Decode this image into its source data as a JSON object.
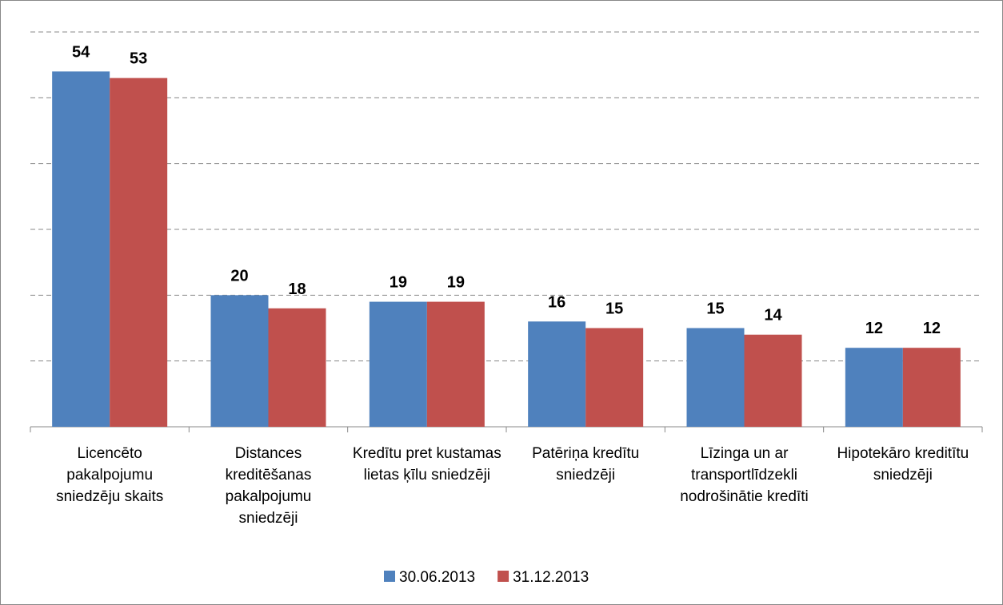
{
  "chart_data": {
    "type": "bar",
    "categories": [
      "Licencēto pakalpojumu sniedzēju skaits",
      "Distances kreditēšanas pakalpojumu sniedzēji",
      "Kredītu pret kustamas lietas ķīlu sniedzēji",
      "Patēriņa kredītu sniedzēji",
      "Līzinga un ar transportlīdzekli nodrošinātie kredīti",
      "Hipotekāro kreditītu sniedzēji"
    ],
    "series": [
      {
        "name": "30.06.2013",
        "color": "#4f81bd",
        "values": [
          54,
          20,
          19,
          16,
          15,
          12
        ]
      },
      {
        "name": "31.12.2013",
        "color": "#c0504d",
        "values": [
          53,
          18,
          19,
          15,
          14,
          12
        ]
      }
    ],
    "ylim": [
      0,
      60
    ],
    "yticks": [
      10,
      20,
      30,
      40,
      50,
      60
    ],
    "grid": true,
    "legend": "bottom"
  }
}
